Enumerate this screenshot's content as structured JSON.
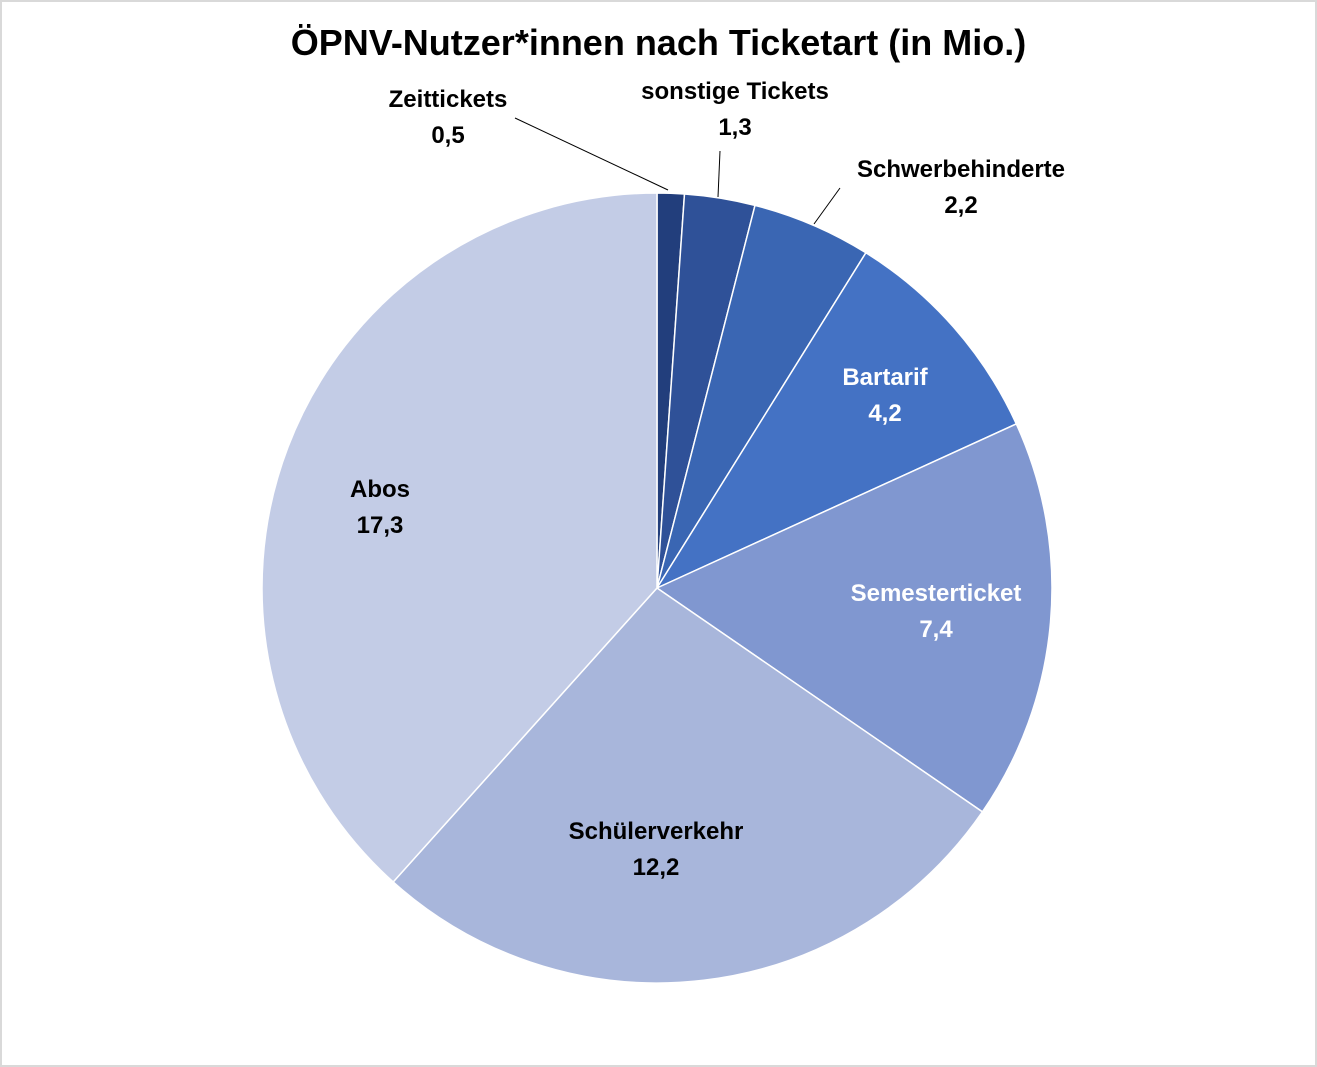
{
  "chart_data": {
    "type": "pie",
    "title": "ÖPNV-Nutzer*innen nach Ticketart (in Mio.)",
    "start_angle_deg": 0,
    "direction": "clockwise",
    "slices": [
      {
        "label": "Zeittickets",
        "value": 0.5,
        "value_label": "0,5",
        "color": "#223e7c",
        "label_color": "#000000",
        "label_position": "outside-leader"
      },
      {
        "label": "sonstige Tickets",
        "value": 1.3,
        "value_label": "1,3",
        "color": "#2f5198",
        "label_color": "#000000",
        "label_position": "outside-leader"
      },
      {
        "label": "Schwerbehinderte",
        "value": 2.2,
        "value_label": "2,2",
        "color": "#3a66b3",
        "label_color": "#000000",
        "label_position": "outside-leader"
      },
      {
        "label": "Bartarif",
        "value": 4.2,
        "value_label": "4,2",
        "color": "#4472c4",
        "label_color": "#ffffff",
        "label_position": "inside"
      },
      {
        "label": "Semesterticket",
        "value": 7.4,
        "value_label": "7,4",
        "color": "#8097d0",
        "label_color": "#ffffff",
        "label_position": "inside"
      },
      {
        "label": "Schülerverkehr",
        "value": 12.2,
        "value_label": "12,2",
        "color": "#a8b6db",
        "label_color": "#000000",
        "label_position": "inside"
      },
      {
        "label": "Abos",
        "value": 17.3,
        "value_label": "17,3",
        "color": "#c3cce6",
        "label_color": "#000000",
        "label_position": "inside"
      }
    ]
  }
}
